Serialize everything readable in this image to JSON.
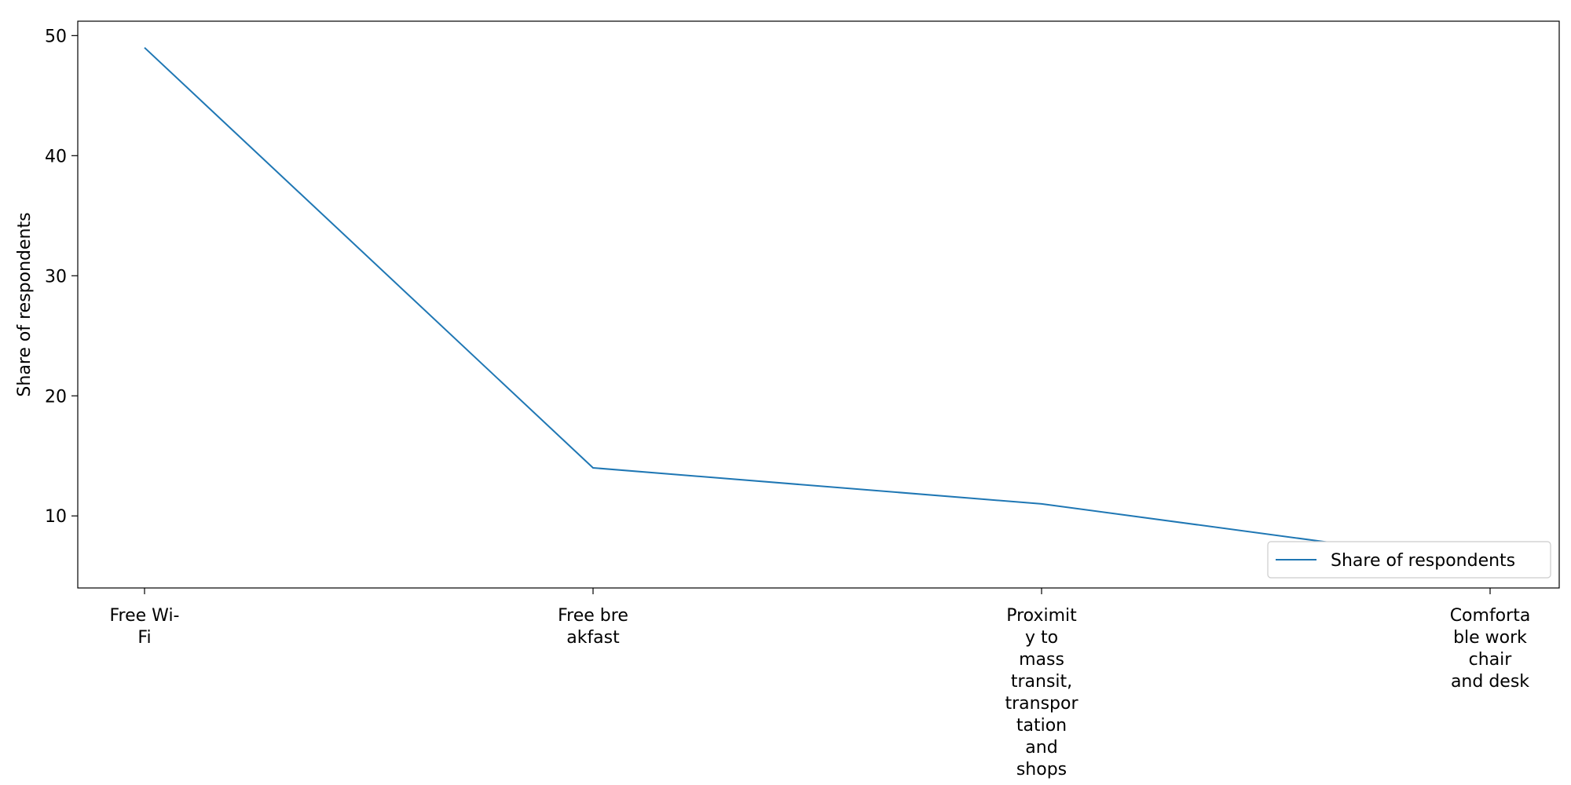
{
  "chart_data": {
    "type": "line",
    "categories": [
      "Free Wi-Fi",
      "Free breakfast",
      "Proximity to mass transit, transportation and shops",
      "Comfortable work chair and desk"
    ],
    "category_tick_lines": [
      [
        "Free Wi-",
        "Fi"
      ],
      [
        "Free bre",
        "akfast"
      ],
      [
        "Proximit",
        "y to",
        "mass",
        "transit,",
        "transpor",
        "tation",
        "and",
        "shops"
      ],
      [
        "Comforta",
        "ble work",
        "chair",
        "and desk"
      ]
    ],
    "series": [
      {
        "name": "Share of respondents",
        "values": [
          49,
          14,
          11,
          6
        ],
        "color": "#1f77b4"
      }
    ],
    "title": "",
    "xlabel": "",
    "ylabel": "Share of respondents",
    "ylim": [
      4,
      51.2
    ],
    "yticks": [
      10,
      20,
      30,
      40,
      50
    ],
    "grid": false,
    "legend_position": "lower-right"
  }
}
